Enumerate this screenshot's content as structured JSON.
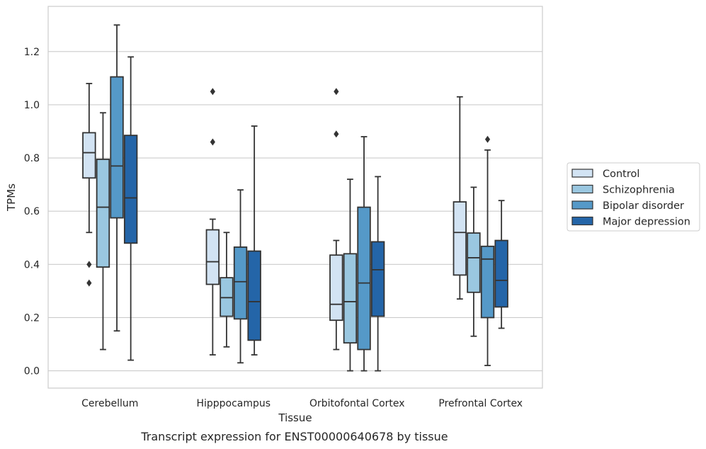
{
  "caption": "Transcript expression for ENST00000640678 by tissue",
  "chart_data": {
    "type": "box",
    "xlabel": "Tissue",
    "ylabel": "TPMs",
    "ylim": [
      -0.065,
      1.37
    ],
    "yticks": [
      0.0,
      0.2,
      0.4,
      0.6,
      0.8,
      1.0,
      1.2
    ],
    "grid": "horizontal",
    "legend_placement": "outside-right",
    "categories": [
      "Cerebellum",
      "Hipppocampus",
      "Orbitofontal Cortex",
      "Prefrontal Cortex"
    ],
    "series": [
      {
        "name": "Control",
        "color": "#d2e3f3",
        "boxes": [
          {
            "whisker_low": 0.52,
            "q1": 0.725,
            "median": 0.82,
            "q3": 0.895,
            "whisker_high": 1.08,
            "outliers": [
              0.4,
              0.33
            ]
          },
          {
            "whisker_low": 0.06,
            "q1": 0.325,
            "median": 0.41,
            "q3": 0.53,
            "whisker_high": 0.57,
            "outliers": [
              1.05,
              0.86
            ]
          },
          {
            "whisker_low": 0.08,
            "q1": 0.19,
            "median": 0.25,
            "q3": 0.435,
            "whisker_high": 0.49,
            "outliers": [
              1.05,
              0.89
            ]
          },
          {
            "whisker_low": 0.27,
            "q1": 0.36,
            "median": 0.52,
            "q3": 0.635,
            "whisker_high": 1.03,
            "outliers": []
          }
        ]
      },
      {
        "name": "Schizophrenia",
        "color": "#9ac7e0",
        "boxes": [
          {
            "whisker_low": 0.08,
            "q1": 0.39,
            "median": 0.615,
            "q3": 0.795,
            "whisker_high": 0.97,
            "outliers": []
          },
          {
            "whisker_low": 0.09,
            "q1": 0.205,
            "median": 0.275,
            "q3": 0.35,
            "whisker_high": 0.52,
            "outliers": []
          },
          {
            "whisker_low": 0.0,
            "q1": 0.105,
            "median": 0.26,
            "q3": 0.44,
            "whisker_high": 0.72,
            "outliers": []
          },
          {
            "whisker_low": 0.13,
            "q1": 0.295,
            "median": 0.425,
            "q3": 0.518,
            "whisker_high": 0.69,
            "outliers": []
          }
        ]
      },
      {
        "name": "Bipolar disorder",
        "color": "#5599c8",
        "boxes": [
          {
            "whisker_low": 0.15,
            "q1": 0.575,
            "median": 0.77,
            "q3": 1.105,
            "whisker_high": 1.3,
            "outliers": []
          },
          {
            "whisker_low": 0.03,
            "q1": 0.195,
            "median": 0.335,
            "q3": 0.465,
            "whisker_high": 0.68,
            "outliers": []
          },
          {
            "whisker_low": 0.0,
            "q1": 0.08,
            "median": 0.33,
            "q3": 0.615,
            "whisker_high": 0.88,
            "outliers": []
          },
          {
            "whisker_low": 0.02,
            "q1": 0.2,
            "median": 0.42,
            "q3": 0.468,
            "whisker_high": 0.83,
            "outliers": [
              0.87
            ]
          }
        ]
      },
      {
        "name": "Major depression",
        "color": "#2465a8",
        "boxes": [
          {
            "whisker_low": 0.04,
            "q1": 0.48,
            "median": 0.65,
            "q3": 0.885,
            "whisker_high": 1.18,
            "outliers": []
          },
          {
            "whisker_low": 0.06,
            "q1": 0.115,
            "median": 0.26,
            "q3": 0.45,
            "whisker_high": 0.92,
            "outliers": []
          },
          {
            "whisker_low": 0.0,
            "q1": 0.205,
            "median": 0.38,
            "q3": 0.485,
            "whisker_high": 0.73,
            "outliers": []
          },
          {
            "whisker_low": 0.16,
            "q1": 0.24,
            "median": 0.34,
            "q3": 0.49,
            "whisker_high": 0.64,
            "outliers": []
          }
        ]
      }
    ]
  }
}
